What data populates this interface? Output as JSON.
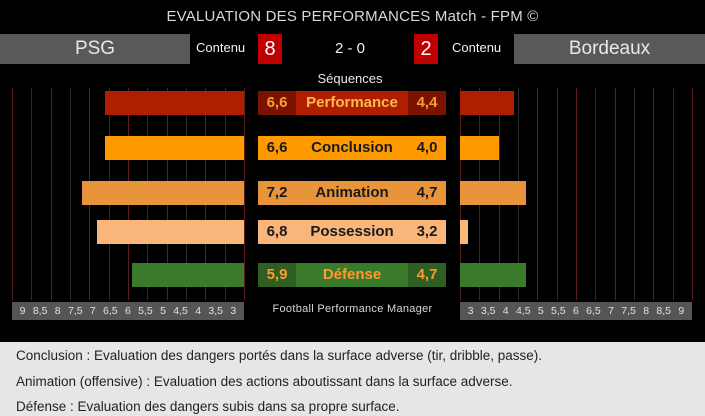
{
  "title": "EVALUATION DES PERFORMANCES Match - FPM ©",
  "home": {
    "team": "PSG",
    "contenu_label": "Contenu",
    "contenu_value": "8"
  },
  "away": {
    "team": "Bordeaux",
    "contenu_label": "Contenu",
    "contenu_value": "2"
  },
  "score": "2 - 0",
  "sequences_label": "Séquences",
  "footer_label": "Football Performance Manager",
  "colors": {
    "performance": "#b01e00",
    "conclusion": "#ff9900",
    "animation": "#e8943a",
    "possession": "#f9b57a",
    "defense": "#3a7a2a",
    "value_red": "#ff4c00",
    "value_orange": "#ff9900",
    "value_green": "#ff9933"
  },
  "chart_data": {
    "type": "bar",
    "categories": [
      "Performance",
      "Conclusion",
      "Animation",
      "Possession",
      "Défense"
    ],
    "series": [
      {
        "name": "PSG",
        "values": [
          6.6,
          6.6,
          7.2,
          6.8,
          5.9
        ]
      },
      {
        "name": "Bordeaux",
        "values": [
          4.4,
          4.0,
          4.7,
          3.2,
          4.7
        ]
      }
    ],
    "value_labels_home": [
      "6,6",
      "6,6",
      "7,2",
      "6,8",
      "5,9"
    ],
    "value_labels_away": [
      "4,4",
      "4,0",
      "4,7",
      "3,2",
      "4,7"
    ],
    "xlim": [
      3,
      9
    ],
    "left_ticks": [
      "9",
      "8,5",
      "8",
      "7,5",
      "7",
      "6,5",
      "6",
      "5,5",
      "5",
      "4,5",
      "4",
      "3,5",
      "3"
    ],
    "right_ticks": [
      "3",
      "3,5",
      "4",
      "4,5",
      "5",
      "5,5",
      "6",
      "6,5",
      "7",
      "7,5",
      "8",
      "8,5",
      "9"
    ]
  },
  "notes": [
    "Conclusion : Evaluation des dangers portés dans la surface adverse (tir, dribble, passe).",
    "Animation (offensive) : Evaluation des actions aboutissant dans la surface adverse.",
    "Défense : Evaluation des dangers subis dans sa propre surface."
  ]
}
